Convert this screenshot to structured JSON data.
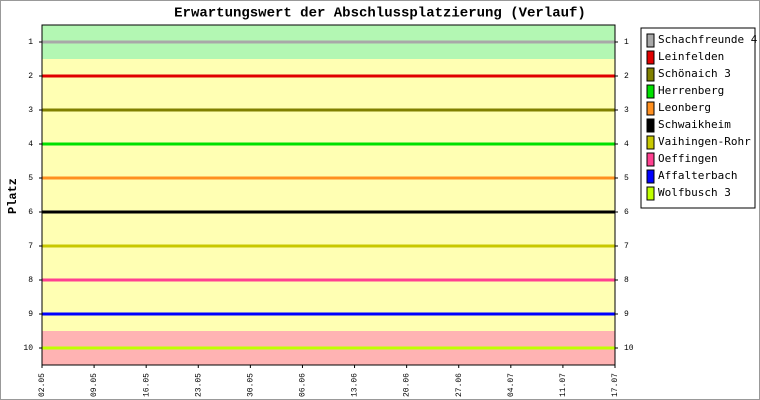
{
  "chart_data": {
    "type": "line",
    "title": "Erwartungswert der Abschlussplatzierung (Verlauf)",
    "y_label": "Platz",
    "categories": [
      "02.05",
      "09.05",
      "16.05",
      "23.05",
      "30.05",
      "06.06",
      "13.06",
      "20.06",
      "27.06",
      "04.07",
      "11.07",
      "17.07"
    ],
    "ylim": [
      0.5,
      10.5
    ],
    "y_reversed": true,
    "yticks": [
      1,
      2,
      3,
      4,
      5,
      6,
      7,
      8,
      9,
      10
    ],
    "bands": [
      {
        "from": 0.5,
        "to": 1.5,
        "color": "#b3f7b3"
      },
      {
        "from": 1.5,
        "to": 9.5,
        "color": "#ffffb3"
      },
      {
        "from": 9.5,
        "to": 10.5,
        "color": "#ffb3b3"
      }
    ],
    "series": [
      {
        "name": "Schachfreunde 4",
        "color": "#a8a8a8",
        "values": [
          1,
          1,
          1,
          1,
          1,
          1,
          1,
          1,
          1,
          1,
          1,
          1
        ]
      },
      {
        "name": "Leinfelden",
        "color": "#e00000",
        "values": [
          2,
          2,
          2,
          2,
          2,
          2,
          2,
          2,
          2,
          2,
          2,
          2
        ]
      },
      {
        "name": "Schönaich 3",
        "color": "#808000",
        "values": [
          3,
          3,
          3,
          3,
          3,
          3,
          3,
          3,
          3,
          3,
          3,
          3
        ]
      },
      {
        "name": "Herrenberg",
        "color": "#00e000",
        "values": [
          4,
          4,
          4,
          4,
          4,
          4,
          4,
          4,
          4,
          4,
          4,
          4
        ]
      },
      {
        "name": "Leonberg",
        "color": "#ff9020",
        "values": [
          5,
          5,
          5,
          5,
          5,
          5,
          5,
          5,
          5,
          5,
          5,
          5
        ]
      },
      {
        "name": "Schwaikheim",
        "color": "#000000",
        "values": [
          6,
          6,
          6,
          6,
          6,
          6,
          6,
          6,
          6,
          6,
          6,
          6
        ]
      },
      {
        "name": "Vaihingen-Rohr",
        "color": "#c8c800",
        "values": [
          7,
          7,
          7,
          7,
          7,
          7,
          7,
          7,
          7,
          7,
          7,
          7
        ]
      },
      {
        "name": "Oeffingen",
        "color": "#ff4090",
        "values": [
          8,
          8,
          8,
          8,
          8,
          8,
          8,
          8,
          8,
          8,
          8,
          8
        ]
      },
      {
        "name": "Affalterbach",
        "color": "#0000ff",
        "values": [
          9,
          9,
          9,
          9,
          9,
          9,
          9,
          9,
          9,
          9,
          9,
          9
        ]
      },
      {
        "name": "Wolfbusch 3",
        "color": "#c0ff00",
        "values": [
          10,
          10,
          10,
          10,
          10,
          10,
          10,
          10,
          10,
          10,
          10,
          10
        ]
      }
    ]
  }
}
